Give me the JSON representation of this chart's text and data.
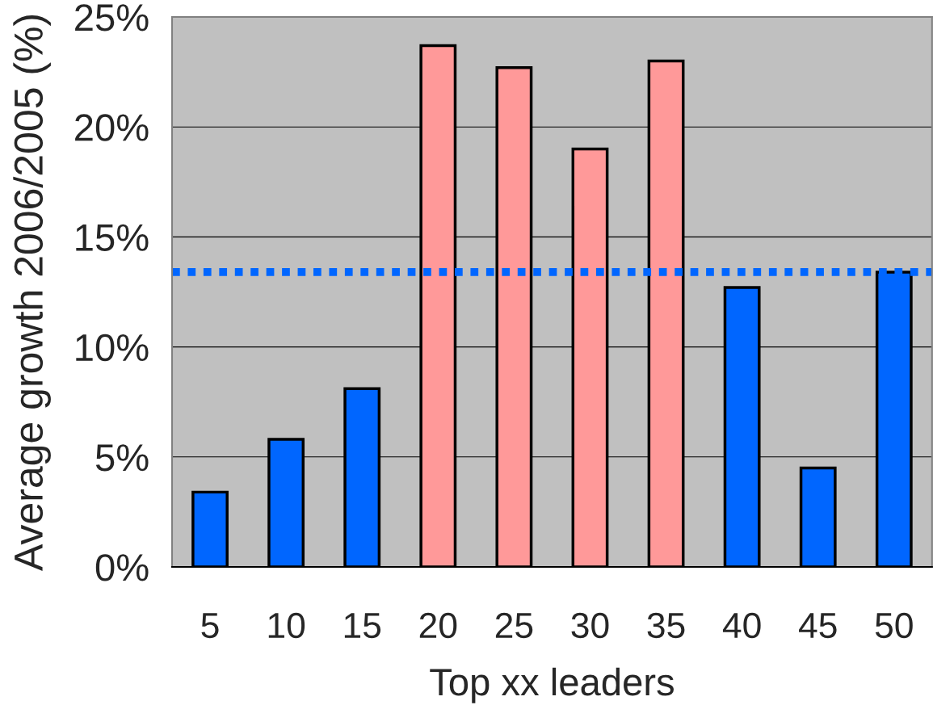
{
  "chart_data": {
    "type": "bar",
    "xlabel": "Top xx leaders",
    "ylabel": "Average growth 2006/2005 (%)",
    "categories": [
      "5",
      "10",
      "15",
      "20",
      "25",
      "30",
      "35",
      "40",
      "45",
      "50"
    ],
    "values": [
      3.4,
      5.8,
      8.1,
      23.7,
      22.7,
      19.0,
      23.0,
      12.7,
      4.5,
      13.4
    ],
    "colors": [
      "#0066ff",
      "#0066ff",
      "#0066ff",
      "#ff9999",
      "#ff9999",
      "#ff9999",
      "#ff9999",
      "#0066ff",
      "#0066ff",
      "#0066ff"
    ],
    "ylim": [
      0,
      25
    ],
    "yticks": [
      {
        "value": 0,
        "label": "0%"
      },
      {
        "value": 5,
        "label": "5%"
      },
      {
        "value": 10,
        "label": "10%"
      },
      {
        "value": 15,
        "label": "15%"
      },
      {
        "value": 20,
        "label": "20%"
      },
      {
        "value": 25,
        "label": "25%"
      }
    ],
    "grid": "y",
    "legend": false,
    "ref_lines": [
      {
        "axis": "y",
        "value": 13.4,
        "color": "#0066ff",
        "line_style": "dotted"
      }
    ]
  }
}
